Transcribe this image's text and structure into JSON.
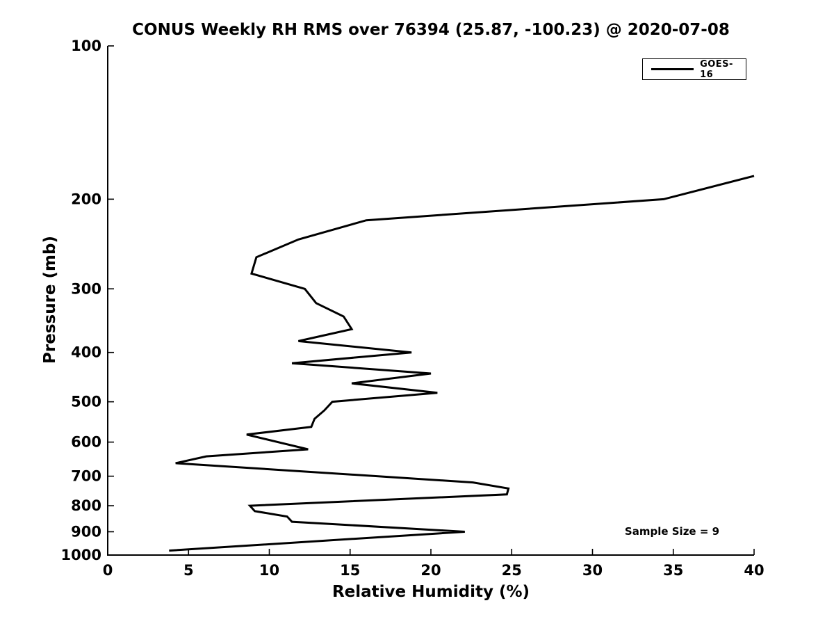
{
  "figure": {
    "background": "#ffffff",
    "axis_color": "#000000",
    "text_color": "#000000"
  },
  "chart_data": {
    "type": "line",
    "title": "CONUS Weekly RH RMS over 76394 (25.87, -100.23) @ 2020-07-08",
    "xlabel": "Relative Humidity (%)",
    "ylabel": "Pressure (mb)",
    "xlim": [
      0,
      40
    ],
    "xticks": [
      0,
      5,
      10,
      15,
      20,
      25,
      30,
      35,
      40
    ],
    "ylim": [
      100,
      1000
    ],
    "yticks": [
      100,
      200,
      300,
      400,
      500,
      600,
      700,
      800,
      900,
      1000
    ],
    "yscale": "log",
    "y_inverted": true,
    "grid": false,
    "legend": {
      "position": "top-right",
      "entries": [
        {
          "label": "GOES-16",
          "color": "#000000"
        }
      ]
    },
    "annotation": {
      "text": "Sample Size = 9"
    },
    "series": [
      {
        "name": "GOES-16",
        "color": "#000000",
        "linewidth": 3,
        "pressure_mb": [
          180,
          200,
          220,
          240,
          260,
          280,
          300,
          320,
          340,
          360,
          380,
          400,
          420,
          440,
          460,
          480,
          500,
          520,
          540,
          560,
          580,
          620,
          640,
          660,
          720,
          740,
          760,
          800,
          820,
          840,
          860,
          900,
          980
        ],
        "rh_percent": [
          40.0,
          34.4,
          16.0,
          11.8,
          9.2,
          8.9,
          12.2,
          12.9,
          14.6,
          15.1,
          11.8,
          18.8,
          11.4,
          20.0,
          15.1,
          20.4,
          13.9,
          13.4,
          12.8,
          12.6,
          8.6,
          12.4,
          6.1,
          4.2,
          22.6,
          24.8,
          24.7,
          8.8,
          9.1,
          11.1,
          11.4,
          22.1,
          3.8
        ]
      }
    ]
  }
}
